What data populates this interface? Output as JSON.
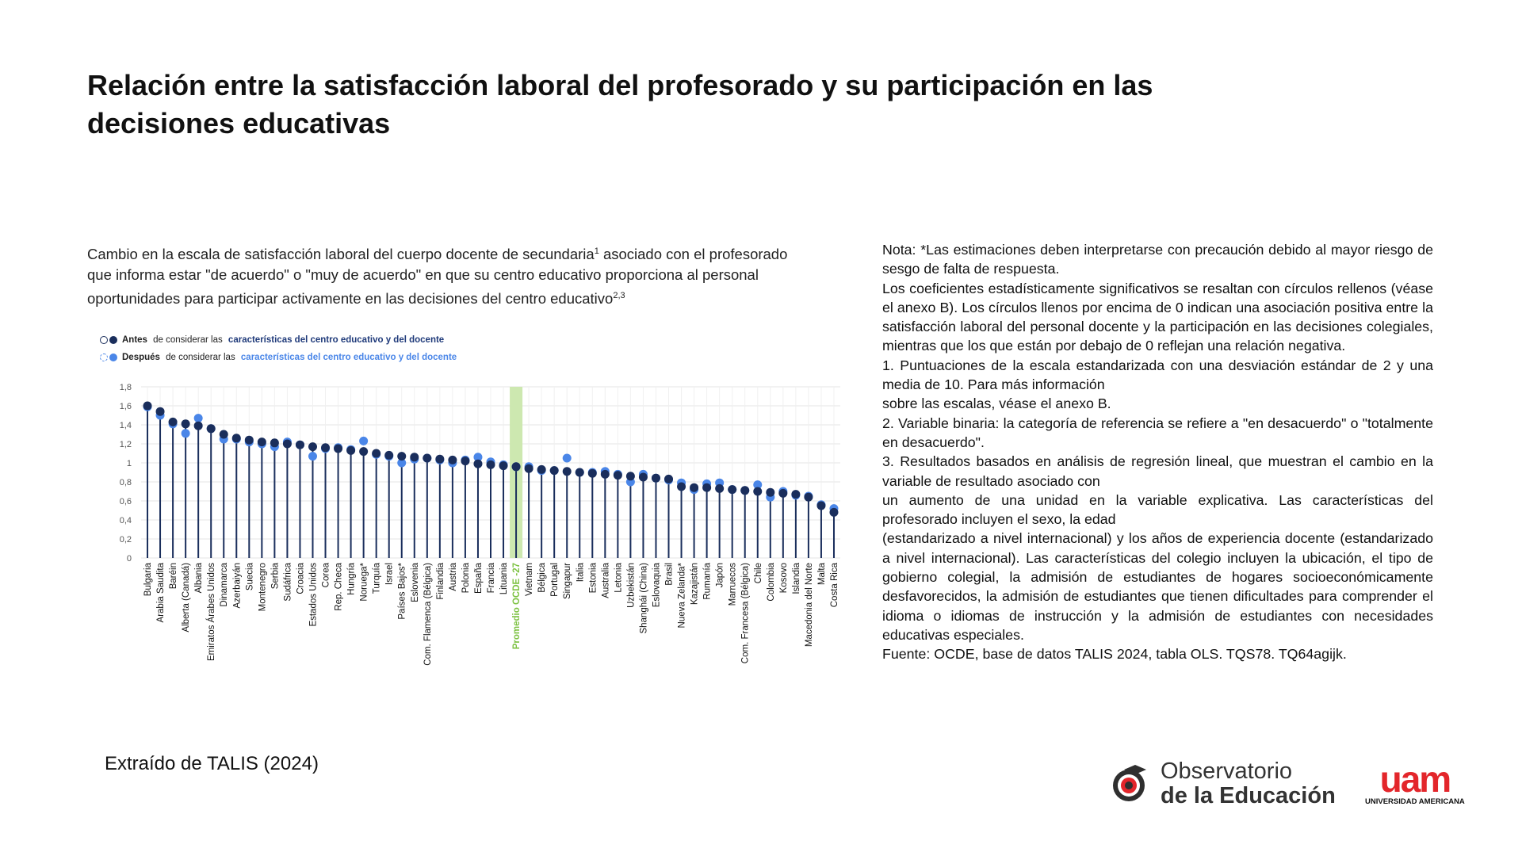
{
  "page": {
    "title": "Relación entre la satisfacción laboral del profesorado y su participación en las decisiones educativas",
    "source_credit": "Extraído de TALIS (2024)"
  },
  "chart": {
    "title_part1": "Cambio en la escala de satisfacción laboral del cuerpo docente de secundaria",
    "title_sup1": "1",
    "title_part2": " asociado con el profesorado que informa estar \"de acuerdo\" o \"muy de acuerdo\" en que su centro educativo proporciona al personal oportunidades para participar activamente en las decisiones del centro educativo",
    "title_sup2": "2,3",
    "legend": {
      "before_prefix": "Antes",
      "before_mid": " de considerar las ",
      "before_suffix": "características del centro educativo y del docente",
      "after_prefix": "Después",
      "after_mid": " de considerar las ",
      "after_suffix": "características del centro educativo y del docente"
    }
  },
  "note": {
    "lines": [
      "Nota: *Las estimaciones deben interpretarse con precaución debido al mayor riesgo de sesgo de falta de respuesta.",
      "Los coeficientes estadísticamente significativos se resaltan con círculos rellenos (véase el anexo B). Los círculos llenos por encima de 0 indican una asociación positiva entre la satisfacción laboral del personal docente y la participación en las decisiones colegiales, mientras que los que están por debajo de 0 reflejan una relación negativa.",
      "1. Puntuaciones de la escala estandarizada con una desviación estándar de 2 y una media de 10. Para más información",
      "sobre las escalas, véase el anexo B.",
      "2. Variable binaria: la categoría de referencia se refiere a \"en desacuerdo\" o \"totalmente en desacuerdo\".",
      "3. Resultados basados en análisis de regresión lineal, que muestran el cambio en la variable de resultado asociado con",
      "un aumento de una unidad en la variable explicativa. Las características del profesorado incluyen el sexo, la edad",
      "(estandarizado a nivel internacional) y los años de experiencia docente (estandarizado a nivel internacional). Las características del colegio incluyen la ubicación, el tipo de gobierno colegial, la admisión de estudiantes de hogares socioeconómicamente desfavorecidos, la admisión de estudiantes que tienen dificultades para comprender el idioma o idiomas de instrucción y la admisión de estudiantes con necesidades educativas especiales.",
      "Fuente: OCDE, base de datos TALIS 2024, tabla OLS. TQS78. TQ64agijk."
    ]
  },
  "logos": {
    "observatorio_line1": "Observatorio",
    "observatorio_line2": "de la Educación",
    "uam_mark": "uam",
    "uam_sub": "UNIVERSIDAD AMERICANA"
  },
  "colors": {
    "before": "#1a2e5c",
    "after": "#4a86e8",
    "highlight": "#cde8b0",
    "highlight_label": "#7dc242",
    "grid": "#e4e4e4"
  },
  "chart_data": {
    "type": "scatter",
    "ylim": [
      0,
      1.8
    ],
    "yticks": [
      "0",
      "0,2",
      "0,4",
      "0,6",
      "0,8",
      "1",
      "1,2",
      "1,4",
      "1,6",
      "1,8"
    ],
    "grid": true,
    "legend_position": "top-left",
    "highlight_category": "Promedio OCDE -27",
    "categories": [
      "Bulgaria",
      "Arabia Saudita",
      "Baréin",
      "Alberta (Canadá)",
      "Albania",
      "Emiratos Árabes Unidos",
      "Dinamarca",
      "Azerbaiyán",
      "Suecia",
      "Montenegro",
      "Serbia",
      "Sudáfrica",
      "Croacia",
      "Estados Unidos",
      "Corea",
      "Rep. Checa",
      "Hungría",
      "Noruega*",
      "Turquía",
      "Israel",
      "Países Bajos*",
      "Eslovenia",
      "Com. Flamenca (Bélgica)",
      "Finlandia",
      "Austria",
      "Polonia",
      "España",
      "Francia",
      "Lituania",
      "Promedio OCDE -27",
      "Vietnam",
      "Bélgica",
      "Portugal",
      "Singapur",
      "Italia",
      "Estonia",
      "Australia",
      "Letonia",
      "Uzbekistán",
      "Shanghái (China)",
      "Eslovaquia",
      "Brasil",
      "Nueva Zelanda*",
      "Kazajistán",
      "Rumanía",
      "Japón",
      "Marruecos",
      "Com. Francesa (Bélgica)",
      "Chile",
      "Colombia",
      "Kosovo",
      "Islandia",
      "Macedonia del Norte",
      "Malta",
      "Costa Rica"
    ],
    "series": [
      {
        "name": "Antes",
        "values": [
          1.6,
          1.54,
          1.43,
          1.41,
          1.39,
          1.36,
          1.3,
          1.26,
          1.24,
          1.22,
          1.21,
          1.2,
          1.19,
          1.17,
          1.16,
          1.15,
          1.13,
          1.12,
          1.1,
          1.08,
          1.07,
          1.06,
          1.05,
          1.04,
          1.03,
          1.02,
          0.99,
          0.98,
          0.97,
          0.96,
          0.94,
          0.93,
          0.92,
          0.91,
          0.9,
          0.89,
          0.88,
          0.87,
          0.86,
          0.85,
          0.84,
          0.83,
          0.75,
          0.74,
          0.74,
          0.73,
          0.72,
          0.71,
          0.7,
          0.69,
          0.68,
          0.67,
          0.64,
          0.55,
          0.48
        ]
      },
      {
        "name": "Después",
        "values": [
          1.59,
          1.5,
          1.41,
          1.31,
          1.47,
          1.36,
          1.25,
          1.25,
          1.22,
          1.2,
          1.17,
          1.22,
          1.19,
          1.07,
          1.15,
          1.16,
          1.14,
          1.23,
          1.09,
          1.07,
          1.0,
          1.04,
          1.05,
          1.03,
          1.0,
          1.03,
          1.06,
          1.01,
          0.98,
          0.96,
          0.96,
          0.92,
          0.92,
          1.05,
          0.9,
          0.9,
          0.91,
          0.88,
          0.8,
          0.88,
          0.84,
          0.82,
          0.79,
          0.72,
          0.78,
          0.79,
          0.72,
          0.71,
          0.77,
          0.64,
          0.7,
          0.66,
          0.65,
          0.56,
          0.52
        ]
      }
    ]
  }
}
